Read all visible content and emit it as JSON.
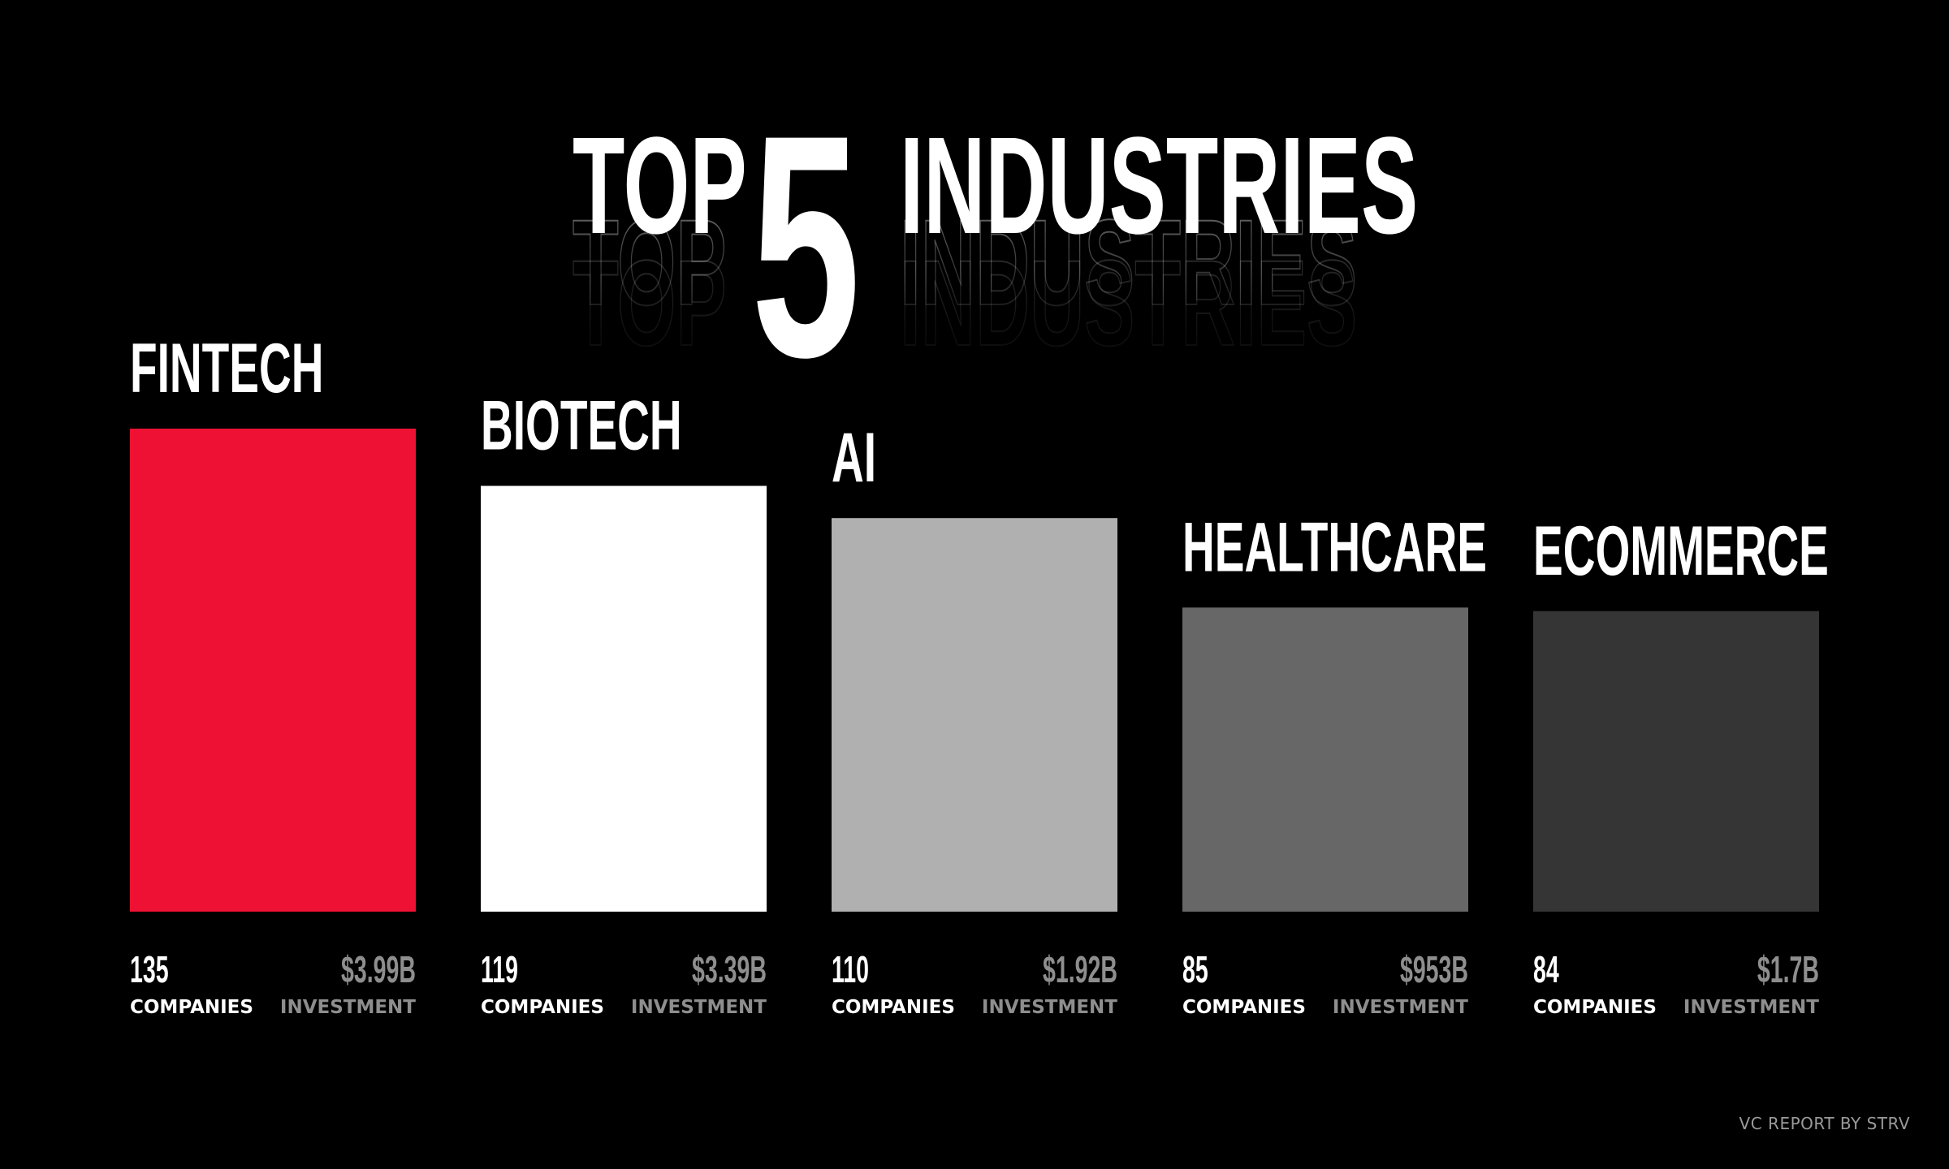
{
  "title": {
    "word1": "TOP",
    "number": "5",
    "word2": "INDUSTRIES"
  },
  "chart_data": {
    "type": "bar",
    "categories": [
      "FINTECH",
      "BIOTECH",
      "AI",
      "HEALTHCARE",
      "ECOMMERCE"
    ],
    "values": [
      135,
      119,
      110,
      85,
      84
    ],
    "investment": [
      "$3.99B",
      "$3.39B",
      "$1.92B",
      "$953B",
      "$1.7B"
    ],
    "bar_colors": [
      "#ee1133",
      "#ffffff",
      "#b0b0b0",
      "#676767",
      "#353535"
    ],
    "ylim": [
      0,
      135
    ],
    "grid": false
  },
  "labels": {
    "companies": "COMPANIES",
    "investment": "INVESTMENT"
  },
  "credit": "VC REPORT BY STRV"
}
